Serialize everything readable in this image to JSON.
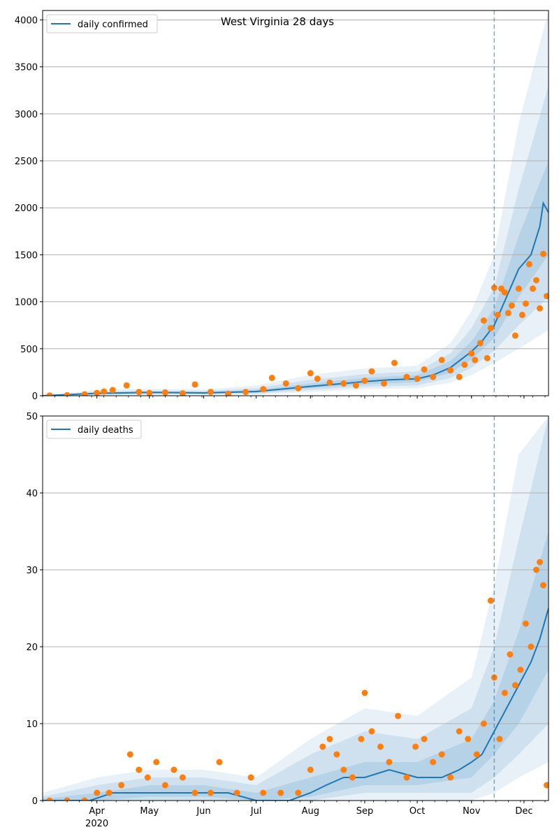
{
  "chart_data": [
    {
      "type": "line",
      "title": "West Virginia 28 days",
      "xlabel": "",
      "ylabel": "",
      "x_range": [
        "2020-03-01",
        "2020-12-15"
      ],
      "ylim": [
        0,
        4100
      ],
      "y_ticks": [
        0,
        500,
        1000,
        1500,
        2000,
        2500,
        3000,
        3500,
        4000
      ],
      "x_ticks": [
        {
          "date": "2020-04-01",
          "label": "Apr",
          "sublabel": "2020"
        },
        {
          "date": "2020-05-01",
          "label": "May",
          "sublabel": ""
        },
        {
          "date": "2020-06-01",
          "label": "Jun",
          "sublabel": ""
        },
        {
          "date": "2020-07-01",
          "label": "Jul",
          "sublabel": ""
        },
        {
          "date": "2020-08-01",
          "label": "Aug",
          "sublabel": ""
        },
        {
          "date": "2020-09-01",
          "label": "Sep",
          "sublabel": ""
        },
        {
          "date": "2020-10-01",
          "label": "Oct",
          "sublabel": ""
        },
        {
          "date": "2020-11-01",
          "label": "Nov",
          "sublabel": ""
        },
        {
          "date": "2020-12-01",
          "label": "Dec",
          "sublabel": ""
        }
      ],
      "grid": "horizontal",
      "legend": "upper-left",
      "forecast_start": "2020-11-14",
      "series": [
        {
          "name": "daily confirmed",
          "kind": "median-line",
          "color": "#1f77b4",
          "x": [
            "2020-03-01",
            "2020-04-01",
            "2020-05-01",
            "2020-06-01",
            "2020-07-01",
            "2020-08-01",
            "2020-08-20",
            "2020-09-01",
            "2020-09-15",
            "2020-10-01",
            "2020-10-10",
            "2020-10-20",
            "2020-11-01",
            "2020-11-07",
            "2020-11-14",
            "2020-11-21",
            "2020-11-28",
            "2020-12-05",
            "2020-12-10",
            "2020-12-12",
            "2020-12-15"
          ],
          "values": [
            0,
            25,
            35,
            30,
            45,
            100,
            130,
            150,
            170,
            180,
            220,
            300,
            470,
            580,
            750,
            1050,
            1350,
            1500,
            1800,
            2050,
            1950
          ]
        },
        {
          "name": "",
          "kind": "uncertainty-bands",
          "color": "#1f77b4",
          "x": [
            "2020-03-01",
            "2020-04-01",
            "2020-05-01",
            "2020-06-01",
            "2020-07-01",
            "2020-08-01",
            "2020-09-01",
            "2020-10-01",
            "2020-10-20",
            "2020-11-01",
            "2020-11-14",
            "2020-11-28",
            "2020-12-15"
          ],
          "median": [
            0,
            25,
            35,
            30,
            45,
            100,
            150,
            180,
            300,
            470,
            750,
            1350,
            1950
          ],
          "bands": [
            {
              "lower": [
                0,
                5,
                10,
                8,
                10,
                40,
                70,
                80,
                140,
                220,
                350,
                500,
                700
              ],
              "upper": [
                5,
                60,
                75,
                65,
                110,
                220,
                290,
                320,
                560,
                900,
                1500,
                2900,
                4100
              ]
            },
            {
              "lower": [
                0,
                12,
                18,
                15,
                22,
                60,
                95,
                110,
                190,
                300,
                480,
                750,
                1050
              ],
              "upper": [
                3,
                45,
                55,
                50,
                80,
                170,
                230,
                260,
                450,
                720,
                1150,
                2200,
                3300
              ]
            },
            {
              "lower": [
                0,
                18,
                25,
                22,
                33,
                80,
                120,
                145,
                245,
                385,
                615,
                1050,
                1500
              ],
              "upper": [
                1,
                35,
                45,
                40,
                60,
                130,
                190,
                220,
                370,
                580,
                930,
                1700,
                2500
              ]
            }
          ]
        },
        {
          "name": "",
          "kind": "observed-points",
          "color": "#ff7f0e",
          "x": [
            "2020-03-05",
            "2020-03-15",
            "2020-03-25",
            "2020-04-01",
            "2020-04-05",
            "2020-04-10",
            "2020-04-18",
            "2020-04-25",
            "2020-05-01",
            "2020-05-10",
            "2020-05-20",
            "2020-05-27",
            "2020-06-05",
            "2020-06-15",
            "2020-06-25",
            "2020-07-05",
            "2020-07-10",
            "2020-07-18",
            "2020-07-25",
            "2020-08-01",
            "2020-08-05",
            "2020-08-12",
            "2020-08-20",
            "2020-08-27",
            "2020-09-01",
            "2020-09-05",
            "2020-09-12",
            "2020-09-18",
            "2020-09-25",
            "2020-10-01",
            "2020-10-05",
            "2020-10-10",
            "2020-10-15",
            "2020-10-20",
            "2020-10-25",
            "2020-10-28",
            "2020-11-01",
            "2020-11-03",
            "2020-11-06",
            "2020-11-08",
            "2020-11-10",
            "2020-11-12",
            "2020-11-14",
            "2020-11-16",
            "2020-11-18",
            "2020-11-20",
            "2020-11-22",
            "2020-11-24",
            "2020-11-26",
            "2020-11-28",
            "2020-11-30",
            "2020-12-02",
            "2020-12-04",
            "2020-12-06",
            "2020-12-08",
            "2020-12-10",
            "2020-12-12",
            "2020-12-14"
          ],
          "values": [
            2,
            5,
            15,
            30,
            45,
            60,
            110,
            40,
            30,
            35,
            25,
            120,
            40,
            20,
            40,
            70,
            190,
            130,
            80,
            240,
            180,
            140,
            130,
            110,
            160,
            260,
            130,
            350,
            200,
            180,
            280,
            200,
            380,
            270,
            200,
            330,
            450,
            380,
            560,
            800,
            400,
            720,
            1150,
            860,
            1140,
            1100,
            880,
            960,
            640,
            1140,
            860,
            980,
            1400,
            1140,
            1230,
            930,
            1510,
            1060
          ]
        }
      ]
    },
    {
      "type": "line",
      "title": "",
      "xlabel": "",
      "ylabel": "",
      "x_range": [
        "2020-03-01",
        "2020-12-15"
      ],
      "ylim": [
        0,
        50
      ],
      "y_ticks": [
        0,
        10,
        20,
        30,
        40,
        50
      ],
      "x_ticks": [
        {
          "date": "2020-04-01",
          "label": "Apr",
          "sublabel": "2020"
        },
        {
          "date": "2020-05-01",
          "label": "May",
          "sublabel": ""
        },
        {
          "date": "2020-06-01",
          "label": "Jun",
          "sublabel": ""
        },
        {
          "date": "2020-07-01",
          "label": "Jul",
          "sublabel": ""
        },
        {
          "date": "2020-08-01",
          "label": "Aug",
          "sublabel": ""
        },
        {
          "date": "2020-09-01",
          "label": "Sep",
          "sublabel": ""
        },
        {
          "date": "2020-10-01",
          "label": "Oct",
          "sublabel": ""
        },
        {
          "date": "2020-11-01",
          "label": "Nov",
          "sublabel": ""
        },
        {
          "date": "2020-12-01",
          "label": "Dec",
          "sublabel": ""
        }
      ],
      "grid": "horizontal",
      "legend": "upper-left",
      "forecast_start": "2020-11-14",
      "series": [
        {
          "name": "daily deaths",
          "kind": "median-line",
          "color": "#1f77b4",
          "x": [
            "2020-03-01",
            "2020-03-28",
            "2020-04-10",
            "2020-05-01",
            "2020-06-01",
            "2020-06-15",
            "2020-07-01",
            "2020-07-20",
            "2020-08-01",
            "2020-08-10",
            "2020-08-20",
            "2020-09-01",
            "2020-09-15",
            "2020-10-01",
            "2020-10-15",
            "2020-10-25",
            "2020-11-01",
            "2020-11-07",
            "2020-11-14",
            "2020-11-21",
            "2020-11-28",
            "2020-12-05",
            "2020-12-10",
            "2020-12-15"
          ],
          "values": [
            0,
            0,
            1,
            1,
            1,
            1,
            0,
            0,
            1,
            2,
            3,
            3,
            4,
            3,
            3,
            4,
            5,
            6,
            9,
            12,
            15,
            18,
            21,
            25
          ]
        },
        {
          "name": "",
          "kind": "uncertainty-bands",
          "color": "#1f77b4",
          "x": [
            "2020-03-01",
            "2020-04-01",
            "2020-05-01",
            "2020-06-01",
            "2020-07-01",
            "2020-08-01",
            "2020-09-01",
            "2020-10-01",
            "2020-11-01",
            "2020-11-14",
            "2020-11-28",
            "2020-12-15"
          ],
          "median": [
            0,
            0.5,
            1,
            1,
            0,
            1.5,
            3,
            3,
            5,
            9,
            15,
            25
          ],
          "bands": [
            {
              "lower": [
                0,
                0,
                0,
                0,
                0,
                0,
                0,
                0,
                0,
                1,
                3,
                5
              ],
              "upper": [
                1,
                3,
                4,
                4,
                3,
                8,
                12,
                11,
                16,
                28,
                45,
                50
              ]
            },
            {
              "lower": [
                0,
                0,
                0,
                0,
                0,
                0,
                1,
                1,
                1,
                3,
                6,
                10
              ],
              "upper": [
                0.5,
                2,
                3,
                3,
                2,
                6,
                9,
                8,
                12,
                20,
                34,
                50
              ]
            },
            {
              "lower": [
                0,
                0,
                0.5,
                0.5,
                0,
                0.5,
                2,
                2,
                3,
                6,
                10,
                17
              ],
              "upper": [
                0.2,
                1,
                2,
                2,
                1,
                3,
                5,
                5,
                8,
                13,
                22,
                35
              ]
            }
          ]
        },
        {
          "name": "",
          "kind": "observed-points",
          "color": "#ff7f0e",
          "x": [
            "2020-03-05",
            "2020-03-15",
            "2020-03-25",
            "2020-04-01",
            "2020-04-08",
            "2020-04-15",
            "2020-04-20",
            "2020-04-25",
            "2020-04-30",
            "2020-05-05",
            "2020-05-10",
            "2020-05-15",
            "2020-05-20",
            "2020-05-27",
            "2020-06-05",
            "2020-06-10",
            "2020-06-20",
            "2020-06-28",
            "2020-07-05",
            "2020-07-15",
            "2020-07-25",
            "2020-08-01",
            "2020-08-08",
            "2020-08-12",
            "2020-08-16",
            "2020-08-20",
            "2020-08-25",
            "2020-08-30",
            "2020-09-01",
            "2020-09-05",
            "2020-09-10",
            "2020-09-15",
            "2020-09-20",
            "2020-09-25",
            "2020-09-30",
            "2020-10-05",
            "2020-10-10",
            "2020-10-15",
            "2020-10-20",
            "2020-10-25",
            "2020-10-30",
            "2020-11-04",
            "2020-11-08",
            "2020-11-12",
            "2020-11-14",
            "2020-11-17",
            "2020-11-20",
            "2020-11-23",
            "2020-11-26",
            "2020-11-29",
            "2020-12-02",
            "2020-12-05",
            "2020-12-08",
            "2020-12-10",
            "2020-12-12",
            "2020-12-14"
          ],
          "values": [
            0,
            0,
            0,
            1,
            1,
            2,
            6,
            4,
            3,
            5,
            2,
            4,
            3,
            1,
            1,
            5,
            1,
            3,
            1,
            1,
            1,
            4,
            7,
            8,
            6,
            4,
            3,
            8,
            14,
            9,
            7,
            5,
            11,
            3,
            7,
            8,
            5,
            6,
            3,
            9,
            8,
            6,
            10,
            26,
            16,
            8,
            14,
            19,
            15,
            17,
            23,
            20,
            30,
            31,
            28,
            2
          ]
        }
      ]
    }
  ],
  "legend": {
    "top_label": "daily confirmed",
    "bottom_label": "daily deaths"
  },
  "figure": {
    "title": "West Virginia 28 days"
  }
}
